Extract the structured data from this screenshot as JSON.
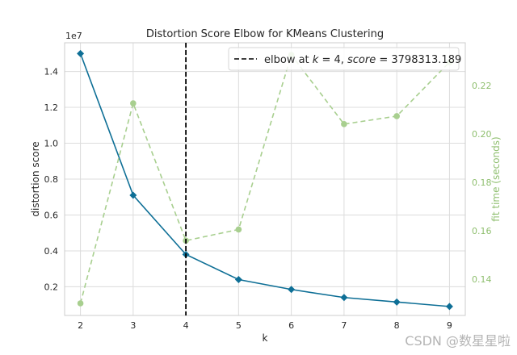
{
  "chart_data": {
    "type": "line",
    "title": "Distortion Score Elbow for KMeans Clustering",
    "xlabel": "k",
    "ylabel": "distortion score",
    "y2label": "fit time (seconds)",
    "y_offset_text": "1e7",
    "x": [
      2,
      3,
      4,
      5,
      6,
      7,
      8,
      9
    ],
    "x_ticks": [
      "2",
      "3",
      "4",
      "5",
      "6",
      "7",
      "8",
      "9"
    ],
    "ylim": [
      0.04,
      1.56
    ],
    "y_ticks": [
      0.2,
      0.4,
      0.6,
      0.8,
      1.0,
      1.2,
      1.4
    ],
    "y_tick_labels": [
      "0.2",
      "0.4",
      "0.6",
      "0.8",
      "1.0",
      "1.2",
      "1.4"
    ],
    "y2lim": [
      0.125,
      0.2376
    ],
    "y2_ticks": [
      0.14,
      0.16,
      0.18,
      0.2,
      0.22
    ],
    "y2_tick_labels": [
      "0.14",
      "0.16",
      "0.18",
      "0.20",
      "0.22"
    ],
    "grid": true,
    "series": [
      {
        "axis": "left",
        "values": [
          1.5,
          0.71,
          0.38,
          0.24,
          0.185,
          0.14,
          0.115,
          0.09
        ],
        "color": "#0e6f96",
        "marker": "diamond",
        "style": "solid"
      },
      {
        "axis": "right",
        "values": [
          0.13,
          0.2126,
          0.1559,
          0.1605,
          0.2326,
          0.204,
          0.2073,
          0.2296
        ],
        "color": "#a8cf8f",
        "marker": "circle",
        "style": "dashed"
      }
    ],
    "elbow": {
      "k": 4,
      "legend_prefix": "elbow at ",
      "legend_k": "k",
      "legend_eq1": " = 4, ",
      "legend_score": "score",
      "legend_eq2": " = 3798313.189",
      "color": "#000000",
      "legend_position": "top-right"
    }
  },
  "watermark": "CSDN @数星星啦"
}
